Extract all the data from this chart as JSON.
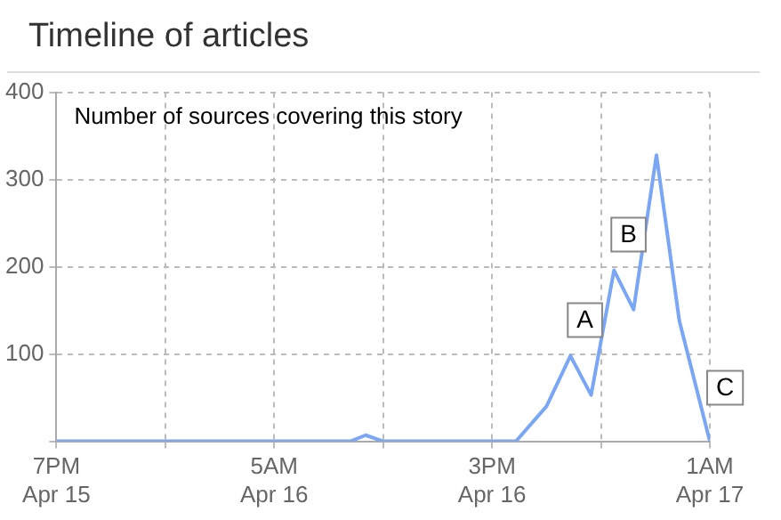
{
  "chart_data": {
    "type": "line",
    "title": "Timeline of articles",
    "annotations": [
      "Number of sources covering this story",
      {
        "text": "A",
        "x": "--04-16T18:36",
        "y": 98
      },
      {
        "text": "B",
        "x": "--04-16T20:36",
        "y": 196
      },
      {
        "text": "C",
        "x": "--04-17T01:00",
        "y": 0
      }
    ],
    "x": [
      "--04-15T19:00",
      "--04-16T08:30",
      "--04-16T09:12",
      "--04-16T10:00",
      "--04-16T16:06",
      "--04-16T17:30",
      "--04-16T18:36",
      "--04-16T19:33",
      "--04-16T20:36",
      "--04-16T21:30",
      "--04-16T22:33",
      "--04-16T23:36",
      "--04-17T01:00"
    ],
    "values": [
      0,
      0,
      7,
      0,
      0,
      40,
      98,
      53,
      196,
      151,
      328,
      138,
      0
    ],
    "color": "#7aa7f5",
    "xlim": [
      "--04-15T19:00",
      "--04-17T01:00"
    ],
    "xticks": [
      {
        "value": "--04-15T19:00",
        "label": "7PM\nApr 15"
      },
      {
        "value": "--04-16T00:00",
        "label": null
      },
      {
        "value": "--04-16T05:00",
        "label": "5AM\nApr 16"
      },
      {
        "value": "--04-16T10:00",
        "label": null
      },
      {
        "value": "--04-16T15:00",
        "label": "3PM\nApr 16"
      },
      {
        "value": "--04-16T20:00",
        "label": null
      },
      {
        "value": "--04-17T01:00",
        "label": "1AM\nApr 17"
      }
    ],
    "ylim": [
      0,
      400
    ],
    "yticks": [
      {
        "value": 0,
        "label": null
      },
      100,
      200,
      300,
      400
    ],
    "grid": true,
    "legend": false,
    "marker": "none",
    "line_style": "solid"
  }
}
